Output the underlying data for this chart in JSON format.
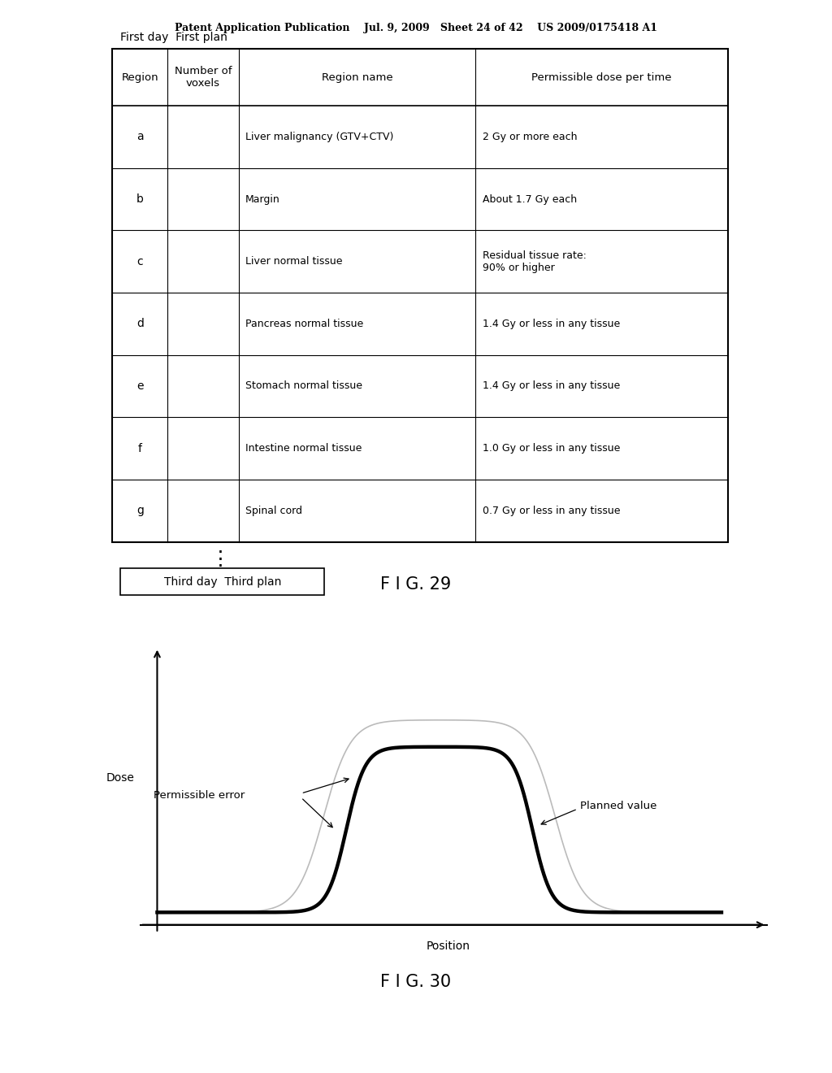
{
  "header_text": "Patent Application Publication    Jul. 9, 2009   Sheet 24 of 42    US 2009/0175418 A1",
  "fig29_label": "F I G. 29",
  "fig30_label": "F I G. 30",
  "table_title": "First day  First plan",
  "table_headers": [
    "Region",
    "Number of\nvoxels",
    "Region name",
    "Permissible dose per time"
  ],
  "table_rows": [
    [
      "a",
      "",
      "Liver malignancy (GTV+CTV)",
      "2 Gy or more each"
    ],
    [
      "b",
      "",
      "Margin",
      "About 1.7 Gy each"
    ],
    [
      "c",
      "",
      "Liver normal tissue",
      "Residual tissue rate:\n90% or higher"
    ],
    [
      "d",
      "",
      "Pancreas normal tissue",
      "1.4 Gy or less in any tissue"
    ],
    [
      "e",
      "",
      "Stomach normal tissue",
      "1.4 Gy or less in any tissue"
    ],
    [
      "f",
      "",
      "Intestine normal tissue",
      "1.0 Gy or less in any tissue"
    ],
    [
      "g",
      "",
      "Spinal cord",
      "0.7 Gy or less in any tissue"
    ]
  ],
  "third_day_label": "Third day  Third plan",
  "dose_label": "Dose",
  "position_label": "Position",
  "permissible_error_label": "Permissible error",
  "planned_value_label": "Planned value",
  "background_color": "#ffffff",
  "text_color": "#000000"
}
